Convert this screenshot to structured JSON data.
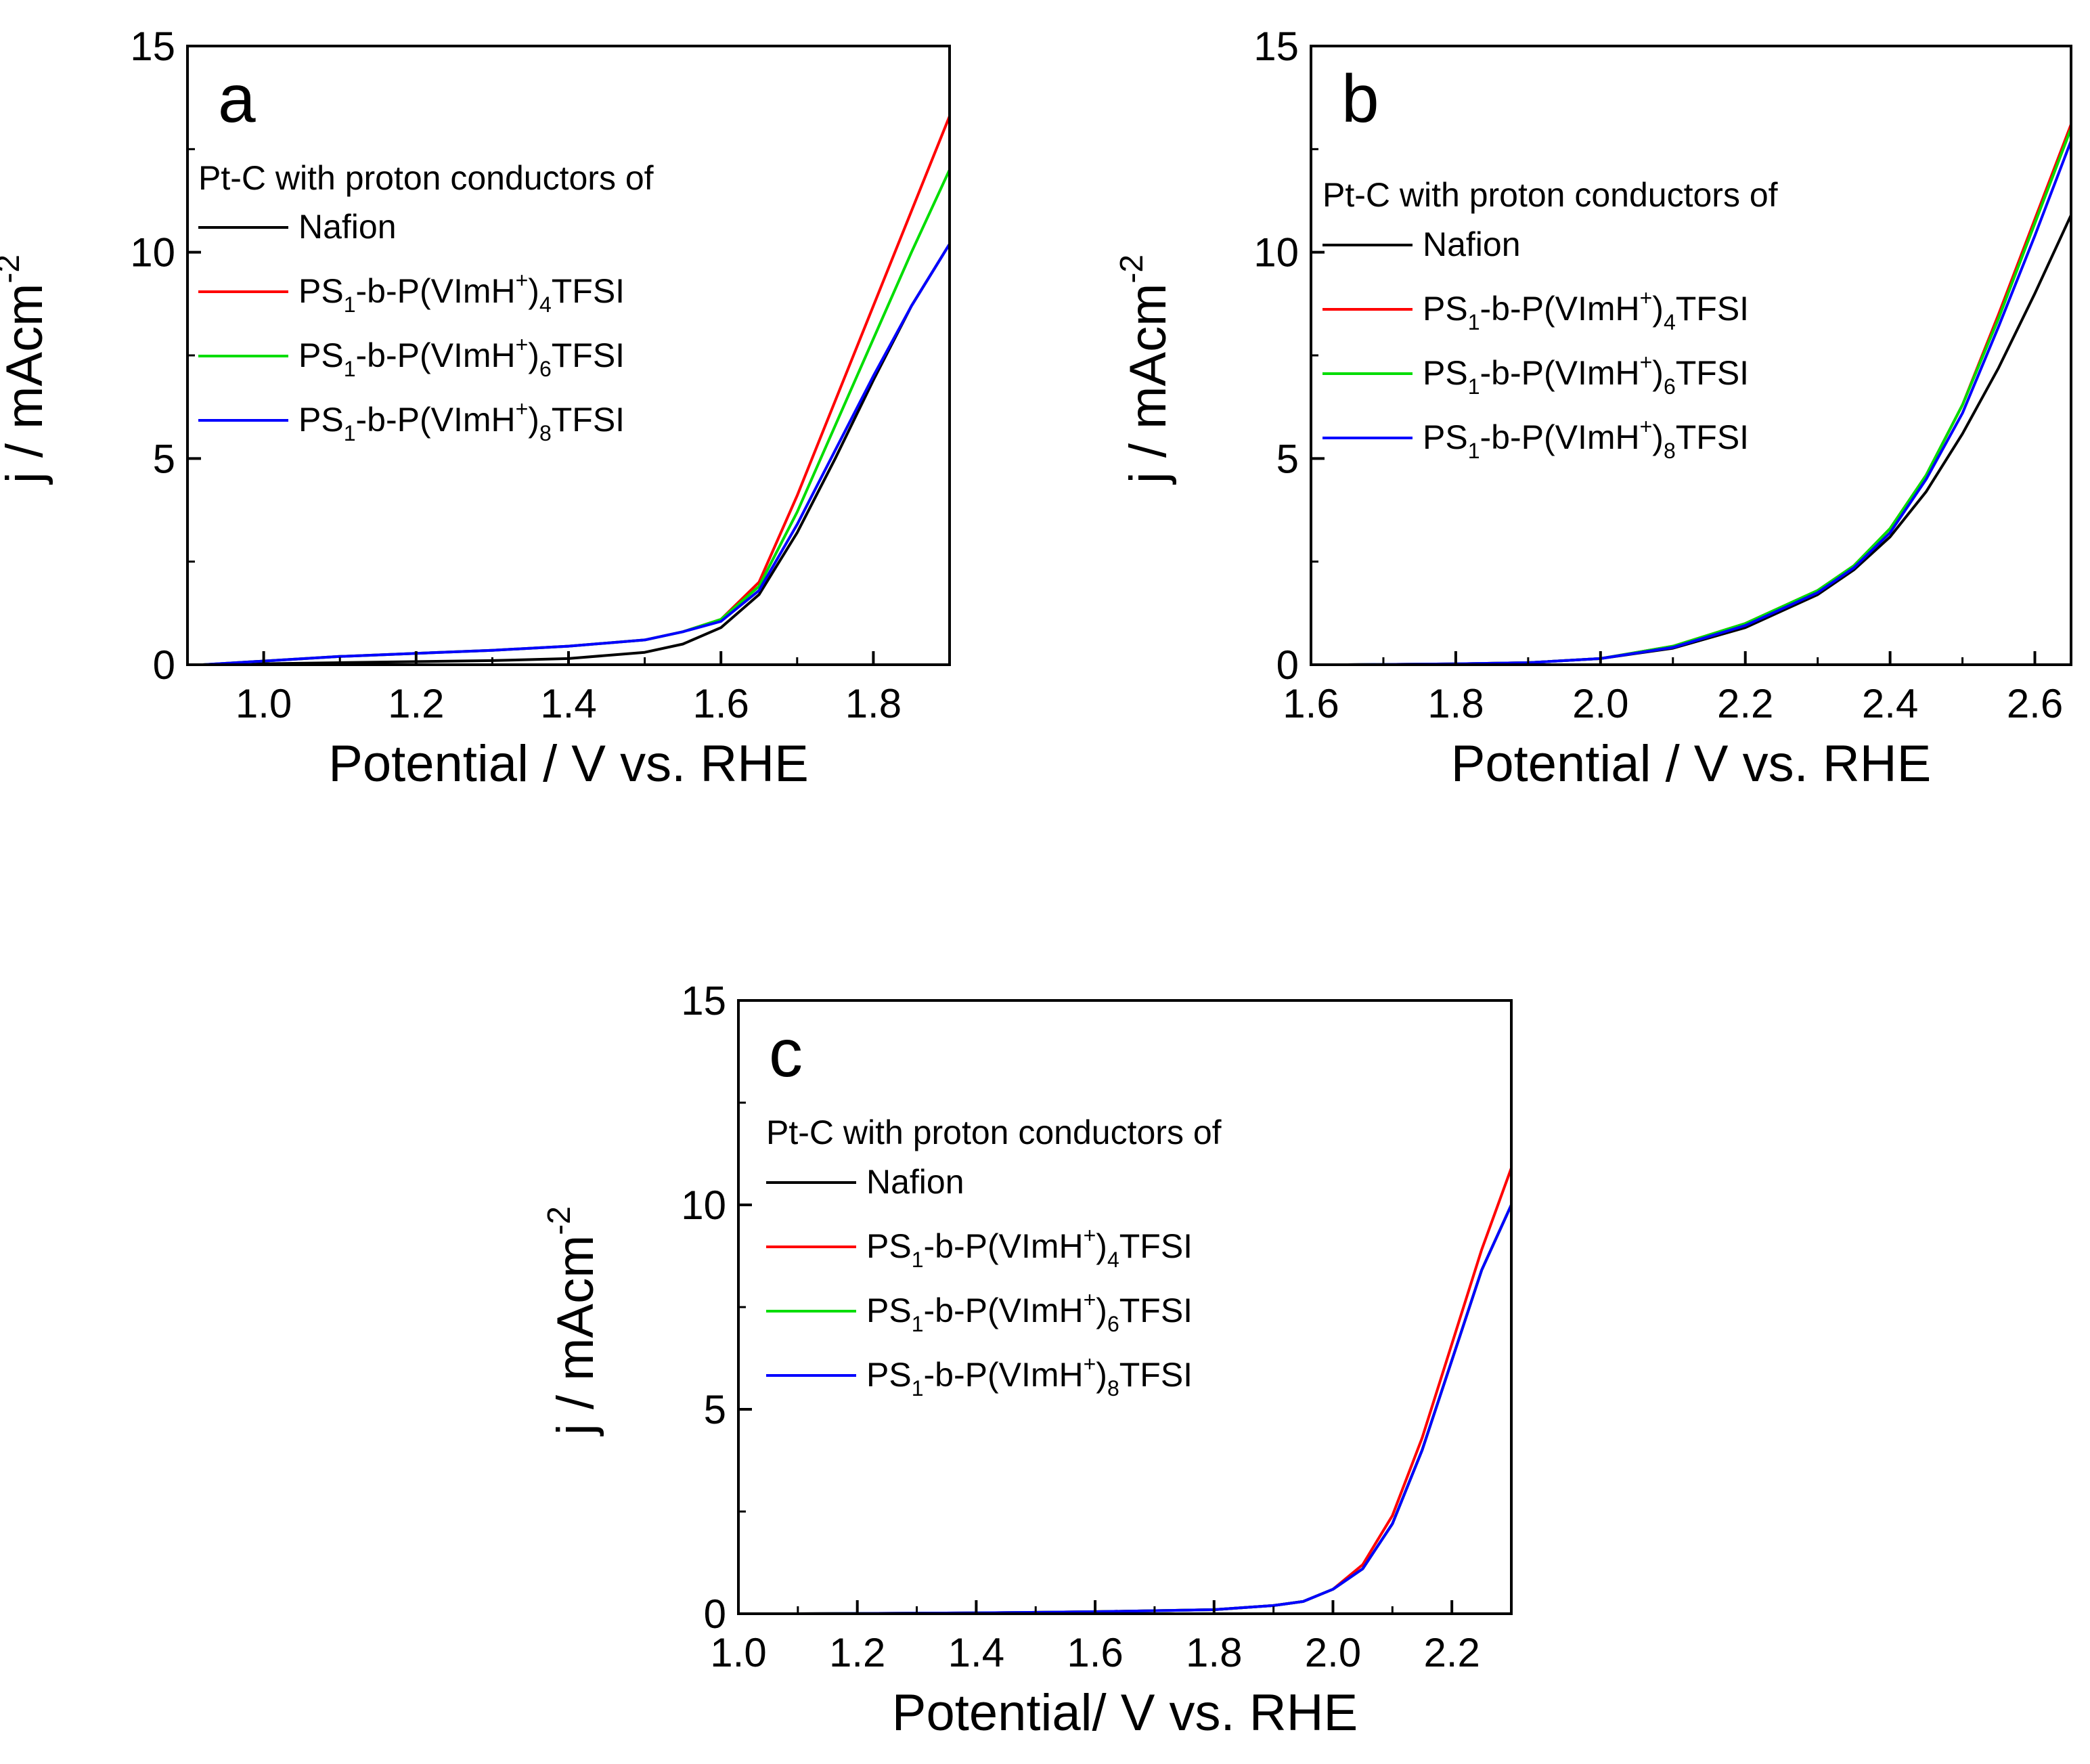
{
  "chart_data": [
    {
      "type": "line",
      "panel_label": "a",
      "xlabel": "Potential / V vs. RHE",
      "ylabel": "j / mAcm",
      "ylabel_sup": "-2",
      "xlim": [
        0.9,
        1.9
      ],
      "ylim": [
        0,
        15
      ],
      "xticks": [
        1.0,
        1.2,
        1.4,
        1.6,
        1.8
      ],
      "xtick_labels": [
        "1.0",
        "1.2",
        "1.4",
        "1.6",
        "1.8"
      ],
      "yticks": [
        0,
        5,
        10,
        15
      ],
      "ytick_labels": [
        "0",
        "5",
        "10",
        "15"
      ],
      "legend_title": "Pt-C with proton conductors of",
      "series": [
        {
          "name": "Nafion",
          "color": "#000000",
          "x": [
            0.92,
            1.1,
            1.3,
            1.4,
            1.5,
            1.55,
            1.6,
            1.65,
            1.7,
            1.75,
            1.8,
            1.85,
            1.9
          ],
          "y": [
            0.0,
            0.05,
            0.1,
            0.15,
            0.3,
            0.5,
            0.9,
            1.7,
            3.2,
            5.0,
            6.9,
            8.7,
            10.2
          ]
        },
        {
          "name": "PS1-b-P(VImH+)4TFSI",
          "color": "#ff0000",
          "x": [
            0.92,
            1.1,
            1.3,
            1.4,
            1.5,
            1.55,
            1.6,
            1.65,
            1.7,
            1.75,
            1.8,
            1.85,
            1.9
          ],
          "y": [
            0.0,
            0.2,
            0.35,
            0.45,
            0.6,
            0.8,
            1.1,
            2.0,
            4.1,
            6.4,
            8.7,
            11.0,
            13.3
          ]
        },
        {
          "name": "PS1-b-P(VImH+)6TFSI",
          "color": "#00dd00",
          "x": [
            0.92,
            1.1,
            1.3,
            1.4,
            1.5,
            1.55,
            1.6,
            1.65,
            1.7,
            1.75,
            1.8,
            1.85,
            1.9
          ],
          "y": [
            0.0,
            0.2,
            0.35,
            0.45,
            0.6,
            0.8,
            1.1,
            1.9,
            3.7,
            5.8,
            7.9,
            10.0,
            12.0
          ]
        },
        {
          "name": "PS1-b-P(VImH+)8TFSI",
          "color": "#0000ff",
          "x": [
            0.92,
            1.1,
            1.3,
            1.4,
            1.5,
            1.55,
            1.6,
            1.65,
            1.7,
            1.75,
            1.8,
            1.85,
            1.9
          ],
          "y": [
            0.0,
            0.2,
            0.35,
            0.45,
            0.6,
            0.8,
            1.05,
            1.8,
            3.4,
            5.2,
            7.0,
            8.7,
            10.2
          ]
        }
      ]
    },
    {
      "type": "line",
      "panel_label": "b",
      "xlabel": "Potential / V vs. RHE",
      "ylabel": "j / mAcm",
      "ylabel_sup": "-2",
      "xlim": [
        1.6,
        2.65
      ],
      "ylim": [
        0,
        15
      ],
      "xticks": [
        1.6,
        1.8,
        2.0,
        2.2,
        2.4,
        2.6
      ],
      "xtick_labels": [
        "1.6",
        "1.8",
        "2.0",
        "2.2",
        "2.4",
        "2.6"
      ],
      "yticks": [
        0,
        5,
        10,
        15
      ],
      "ytick_labels": [
        "0",
        "5",
        "10",
        "15"
      ],
      "legend_title": "Pt-C with proton conductors of",
      "series": [
        {
          "name": "Nafion",
          "color": "#000000",
          "x": [
            1.65,
            1.8,
            1.9,
            2.0,
            2.1,
            2.2,
            2.3,
            2.35,
            2.4,
            2.45,
            2.5,
            2.55,
            2.6,
            2.65
          ],
          "y": [
            0.0,
            0.02,
            0.05,
            0.15,
            0.4,
            0.9,
            1.7,
            2.3,
            3.1,
            4.2,
            5.6,
            7.2,
            9.0,
            10.9
          ]
        },
        {
          "name": "PS1-b-P(VImH+)4TFSI",
          "color": "#ff0000",
          "x": [
            1.65,
            1.8,
            1.9,
            2.0,
            2.1,
            2.2,
            2.3,
            2.35,
            2.4,
            2.45,
            2.5,
            2.55,
            2.6,
            2.65
          ],
          "y": [
            0.0,
            0.02,
            0.05,
            0.15,
            0.45,
            1.0,
            1.8,
            2.4,
            3.3,
            4.6,
            6.3,
            8.5,
            10.8,
            13.1
          ]
        },
        {
          "name": "PS1-b-P(VImH+)6TFSI",
          "color": "#00dd00",
          "x": [
            1.65,
            1.8,
            1.9,
            2.0,
            2.1,
            2.2,
            2.3,
            2.35,
            2.4,
            2.45,
            2.5,
            2.55,
            2.6,
            2.65
          ],
          "y": [
            0.0,
            0.02,
            0.05,
            0.15,
            0.45,
            1.0,
            1.8,
            2.4,
            3.3,
            4.6,
            6.3,
            8.4,
            10.7,
            13.0
          ]
        },
        {
          "name": "PS1-b-P(VImH+)8TFSI",
          "color": "#0000ff",
          "x": [
            1.65,
            1.8,
            1.9,
            2.0,
            2.1,
            2.2,
            2.3,
            2.35,
            2.4,
            2.45,
            2.5,
            2.55,
            2.6,
            2.65
          ],
          "y": [
            0.0,
            0.02,
            0.05,
            0.15,
            0.42,
            0.95,
            1.75,
            2.35,
            3.2,
            4.5,
            6.1,
            8.2,
            10.4,
            12.7
          ]
        }
      ]
    },
    {
      "type": "line",
      "panel_label": "c",
      "xlabel": "Potential/ V vs. RHE",
      "ylabel": "j / mAcm",
      "ylabel_sup": "-2",
      "xlim": [
        1.0,
        2.3
      ],
      "ylim": [
        0,
        15
      ],
      "xticks": [
        1.0,
        1.2,
        1.4,
        1.6,
        1.8,
        2.0,
        2.2
      ],
      "xtick_labels": [
        "1.0",
        "1.2",
        "1.4",
        "1.6",
        "1.8",
        "2.0",
        "2.2"
      ],
      "yticks": [
        0,
        5,
        10,
        15
      ],
      "ytick_labels": [
        "0",
        "5",
        "10",
        "15"
      ],
      "legend_title": "Pt-C with proton conductors of",
      "series": [
        {
          "name": "Nafion",
          "color": "#000000",
          "x": [
            1.1,
            1.4,
            1.6,
            1.8,
            1.9,
            1.95,
            2.0,
            2.05,
            2.1,
            2.15,
            2.2,
            2.25,
            2.3
          ],
          "y": [
            0.0,
            0.02,
            0.05,
            0.1,
            0.2,
            0.3,
            0.6,
            1.1,
            2.2,
            4.0,
            6.2,
            8.4,
            10.0
          ]
        },
        {
          "name": "PS1-b-P(VImH+)4TFSI",
          "color": "#ff0000",
          "x": [
            1.1,
            1.4,
            1.6,
            1.8,
            1.9,
            1.95,
            2.0,
            2.05,
            2.1,
            2.15,
            2.2,
            2.25,
            2.3
          ],
          "y": [
            0.0,
            0.02,
            0.05,
            0.1,
            0.2,
            0.3,
            0.6,
            1.2,
            2.4,
            4.3,
            6.6,
            8.9,
            10.9
          ]
        },
        {
          "name": "PS1-b-P(VImH+)6TFSI",
          "color": "#00dd00",
          "x": [
            1.1,
            1.4,
            1.6,
            1.8,
            1.9,
            1.95,
            2.0,
            2.05,
            2.1,
            2.15,
            2.2,
            2.25,
            2.3
          ],
          "y": [
            0.0,
            0.02,
            0.05,
            0.1,
            0.2,
            0.3,
            0.6,
            1.1,
            2.2,
            4.0,
            6.2,
            8.4,
            10.0
          ]
        },
        {
          "name": "PS1-b-P(VImH+)8TFSI",
          "color": "#0000ff",
          "x": [
            1.1,
            1.4,
            1.6,
            1.8,
            1.9,
            1.95,
            2.0,
            2.05,
            2.1,
            2.15,
            2.2,
            2.25,
            2.3
          ],
          "y": [
            0.0,
            0.02,
            0.05,
            0.1,
            0.2,
            0.3,
            0.6,
            1.1,
            2.2,
            4.0,
            6.2,
            8.4,
            10.0
          ]
        }
      ]
    }
  ],
  "legend_labels": [
    {
      "plain": "Nafion"
    },
    {
      "pre": "PS",
      "sub1": "1",
      "mid": "-b-P(VImH",
      "sup": "+",
      "close": ")",
      "sub2": "4",
      "post": "TFSI"
    },
    {
      "pre": "PS",
      "sub1": "1",
      "mid": "-b-P(VImH",
      "sup": "+",
      "close": ")",
      "sub2": "6",
      "post": "TFSI"
    },
    {
      "pre": "PS",
      "sub1": "1",
      "mid": "-b-P(VImH",
      "sup": "+",
      "close": ")",
      "sub2": "8",
      "post": "TFSI"
    }
  ]
}
